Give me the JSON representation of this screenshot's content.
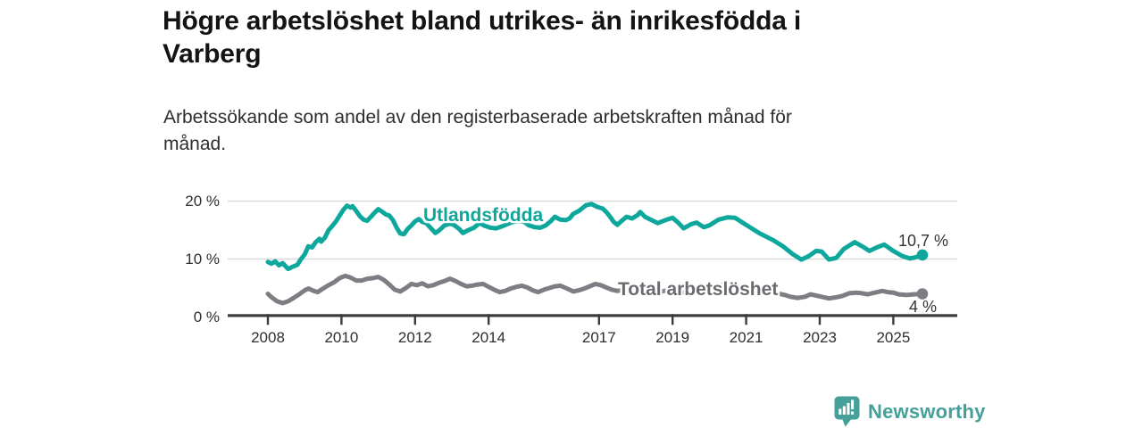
{
  "header": {
    "title_lines": [
      "Högre arbetslöshet bland utrikes- än inrikesfödda i",
      "Varberg"
    ],
    "subtitle_lines": [
      "Arbetssökande som andel av den registerbaserade arbetskraften månad för",
      "månad."
    ]
  },
  "footer": {
    "brand_name": "Newsworthy",
    "brand_color": "#45a09a",
    "logo_icon": "newsworthy-speech-bubble-bar-chart-icon"
  },
  "chart_data": {
    "type": "line",
    "title": "Högre arbetslöshet bland utrikes- än inrikesfödda i Varberg",
    "subtitle": "Arbetssökande som andel av den registerbaserade arbetskraften månad för månad.",
    "unit": "%",
    "grid": "horizontal",
    "legend_position": "inline-labels-on-lines",
    "x_axis": {
      "ticks": [
        {
          "value": 2008,
          "label": "2008"
        },
        {
          "value": 2010,
          "label": "2010"
        },
        {
          "value": 2012,
          "label": "2012"
        },
        {
          "value": 2014,
          "label": "2014"
        },
        {
          "value": 2017,
          "label": "2017"
        },
        {
          "value": 2019,
          "label": "2019"
        },
        {
          "value": 2021,
          "label": "2021"
        },
        {
          "value": 2023,
          "label": "2023"
        },
        {
          "value": 2025,
          "label": "2025"
        }
      ],
      "range": [
        2006.9,
        2026.7
      ]
    },
    "y_axis": {
      "ticks": [
        {
          "value": 0,
          "label": "0 %"
        },
        {
          "value": 10,
          "label": "10 %"
        },
        {
          "value": 20,
          "label": "20 %"
        }
      ],
      "range": [
        0,
        21.5
      ]
    },
    "series": [
      {
        "name": "Utlandsfödda",
        "color": "#0da79c",
        "end_label": "10,7 %",
        "last_value": 10.7,
        "points": [
          [
            2008.0,
            9.5
          ],
          [
            2008.1,
            9.2
          ],
          [
            2008.2,
            9.6
          ],
          [
            2008.3,
            8.9
          ],
          [
            2008.4,
            9.3
          ],
          [
            2008.55,
            8.3
          ],
          [
            2008.65,
            8.6
          ],
          [
            2008.8,
            9.0
          ],
          [
            2008.9,
            10.0
          ],
          [
            2009.0,
            10.8
          ],
          [
            2009.1,
            12.2
          ],
          [
            2009.2,
            12.0
          ],
          [
            2009.3,
            12.9
          ],
          [
            2009.4,
            13.5
          ],
          [
            2009.45,
            13.0
          ],
          [
            2009.55,
            13.7
          ],
          [
            2009.65,
            15.0
          ],
          [
            2009.75,
            15.7
          ],
          [
            2009.85,
            16.5
          ],
          [
            2009.95,
            17.5
          ],
          [
            2010.05,
            18.5
          ],
          [
            2010.15,
            19.2
          ],
          [
            2010.25,
            18.9
          ],
          [
            2010.3,
            19.1
          ],
          [
            2010.4,
            18.3
          ],
          [
            2010.5,
            17.4
          ],
          [
            2010.6,
            16.8
          ],
          [
            2010.7,
            16.6
          ],
          [
            2010.8,
            17.3
          ],
          [
            2010.9,
            18.0
          ],
          [
            2011.0,
            18.6
          ],
          [
            2011.1,
            18.2
          ],
          [
            2011.2,
            17.7
          ],
          [
            2011.3,
            17.5
          ],
          [
            2011.4,
            16.7
          ],
          [
            2011.5,
            15.4
          ],
          [
            2011.6,
            14.4
          ],
          [
            2011.7,
            14.3
          ],
          [
            2011.8,
            15.2
          ],
          [
            2011.9,
            15.8
          ],
          [
            2012.0,
            16.5
          ],
          [
            2012.1,
            16.9
          ],
          [
            2012.2,
            16.4
          ],
          [
            2012.3,
            16.2
          ],
          [
            2012.45,
            15.2
          ],
          [
            2012.55,
            14.5
          ],
          [
            2012.65,
            14.9
          ],
          [
            2012.8,
            15.8
          ],
          [
            2012.95,
            16.1
          ],
          [
            2013.05,
            15.9
          ],
          [
            2013.2,
            15.2
          ],
          [
            2013.3,
            14.5
          ],
          [
            2013.45,
            15.0
          ],
          [
            2013.6,
            15.4
          ],
          [
            2013.75,
            16.2
          ],
          [
            2013.9,
            15.7
          ],
          [
            2014.05,
            15.4
          ],
          [
            2014.2,
            15.3
          ],
          [
            2014.35,
            15.6
          ],
          [
            2014.5,
            16.0
          ],
          [
            2014.65,
            16.4
          ],
          [
            2014.8,
            16.6
          ],
          [
            2014.95,
            16.5
          ],
          [
            2015.1,
            15.8
          ],
          [
            2015.25,
            15.5
          ],
          [
            2015.4,
            15.4
          ],
          [
            2015.55,
            15.8
          ],
          [
            2015.7,
            16.6
          ],
          [
            2015.8,
            17.3
          ],
          [
            2015.95,
            16.8
          ],
          [
            2016.1,
            16.7
          ],
          [
            2016.2,
            17.0
          ],
          [
            2016.3,
            17.8
          ],
          [
            2016.45,
            18.3
          ],
          [
            2016.55,
            18.8
          ],
          [
            2016.65,
            19.3
          ],
          [
            2016.8,
            19.5
          ],
          [
            2016.95,
            19.0
          ],
          [
            2017.1,
            18.7
          ],
          [
            2017.2,
            18.1
          ],
          [
            2017.3,
            17.3
          ],
          [
            2017.4,
            16.4
          ],
          [
            2017.5,
            15.9
          ],
          [
            2017.6,
            16.5
          ],
          [
            2017.75,
            17.3
          ],
          [
            2017.9,
            17.0
          ],
          [
            2018.05,
            17.6
          ],
          [
            2018.12,
            18.1
          ],
          [
            2018.25,
            17.3
          ],
          [
            2018.4,
            16.8
          ],
          [
            2018.6,
            16.2
          ],
          [
            2018.8,
            16.7
          ],
          [
            2019.0,
            17.1
          ],
          [
            2019.15,
            16.3
          ],
          [
            2019.3,
            15.3
          ],
          [
            2019.5,
            16.0
          ],
          [
            2019.65,
            16.3
          ],
          [
            2019.85,
            15.5
          ],
          [
            2020.0,
            15.8
          ],
          [
            2020.25,
            16.8
          ],
          [
            2020.5,
            17.2
          ],
          [
            2020.7,
            17.1
          ],
          [
            2020.9,
            16.3
          ],
          [
            2021.1,
            15.5
          ],
          [
            2021.35,
            14.5
          ],
          [
            2021.5,
            14.0
          ],
          [
            2021.75,
            13.2
          ],
          [
            2022.0,
            12.2
          ],
          [
            2022.25,
            10.9
          ],
          [
            2022.5,
            9.9
          ],
          [
            2022.7,
            10.5
          ],
          [
            2022.9,
            11.4
          ],
          [
            2023.05,
            11.3
          ],
          [
            2023.25,
            9.9
          ],
          [
            2023.45,
            10.2
          ],
          [
            2023.65,
            11.7
          ],
          [
            2023.95,
            12.9
          ],
          [
            2024.15,
            12.2
          ],
          [
            2024.35,
            11.4
          ],
          [
            2024.55,
            12.0
          ],
          [
            2024.75,
            12.5
          ],
          [
            2025.0,
            11.4
          ],
          [
            2025.25,
            10.5
          ],
          [
            2025.45,
            10.1
          ],
          [
            2025.6,
            10.3
          ],
          [
            2025.79,
            10.7
          ]
        ]
      },
      {
        "name": "Total arbetslöshet",
        "color": "#7d7d83",
        "end_label": "4 %",
        "last_value": 4,
        "points": [
          [
            2008.0,
            4.0
          ],
          [
            2008.1,
            3.4
          ],
          [
            2008.25,
            2.7
          ],
          [
            2008.4,
            2.4
          ],
          [
            2008.55,
            2.7
          ],
          [
            2008.7,
            3.3
          ],
          [
            2008.85,
            3.9
          ],
          [
            2009.0,
            4.6
          ],
          [
            2009.1,
            4.9
          ],
          [
            2009.25,
            4.5
          ],
          [
            2009.35,
            4.3
          ],
          [
            2009.5,
            4.9
          ],
          [
            2009.65,
            5.5
          ],
          [
            2009.8,
            6.0
          ],
          [
            2009.95,
            6.7
          ],
          [
            2010.1,
            7.1
          ],
          [
            2010.25,
            6.8
          ],
          [
            2010.4,
            6.3
          ],
          [
            2010.55,
            6.3
          ],
          [
            2010.7,
            6.6
          ],
          [
            2010.85,
            6.7
          ],
          [
            2011.0,
            6.9
          ],
          [
            2011.15,
            6.4
          ],
          [
            2011.3,
            5.6
          ],
          [
            2011.45,
            4.7
          ],
          [
            2011.6,
            4.4
          ],
          [
            2011.75,
            5.0
          ],
          [
            2011.9,
            5.7
          ],
          [
            2012.05,
            5.5
          ],
          [
            2012.2,
            5.8
          ],
          [
            2012.35,
            5.3
          ],
          [
            2012.5,
            5.5
          ],
          [
            2012.65,
            5.9
          ],
          [
            2012.8,
            6.2
          ],
          [
            2012.95,
            6.6
          ],
          [
            2013.1,
            6.2
          ],
          [
            2013.25,
            5.7
          ],
          [
            2013.4,
            5.3
          ],
          [
            2013.55,
            5.4
          ],
          [
            2013.7,
            5.6
          ],
          [
            2013.85,
            5.7
          ],
          [
            2014.0,
            5.2
          ],
          [
            2014.15,
            4.7
          ],
          [
            2014.3,
            4.3
          ],
          [
            2014.45,
            4.5
          ],
          [
            2014.6,
            4.9
          ],
          [
            2014.75,
            5.2
          ],
          [
            2014.9,
            5.4
          ],
          [
            2015.05,
            5.1
          ],
          [
            2015.2,
            4.6
          ],
          [
            2015.35,
            4.3
          ],
          [
            2015.5,
            4.7
          ],
          [
            2015.65,
            5.0
          ],
          [
            2015.8,
            5.3
          ],
          [
            2015.95,
            5.4
          ],
          [
            2016.1,
            5.0
          ],
          [
            2016.3,
            4.4
          ],
          [
            2016.45,
            4.6
          ],
          [
            2016.6,
            4.9
          ],
          [
            2016.75,
            5.3
          ],
          [
            2016.9,
            5.7
          ],
          [
            2017.05,
            5.5
          ],
          [
            2017.2,
            5.1
          ],
          [
            2017.35,
            4.7
          ],
          [
            2017.5,
            4.5
          ],
          [
            2017.65,
            4.7
          ],
          [
            2017.8,
            4.9
          ],
          [
            2017.95,
            5.1
          ],
          [
            2018.1,
            5.0
          ],
          [
            2018.25,
            4.6
          ],
          [
            2018.4,
            4.3
          ],
          [
            2018.55,
            4.2
          ],
          [
            2018.7,
            4.4
          ],
          [
            2018.85,
            4.6
          ],
          [
            2019.0,
            4.8
          ],
          [
            2019.15,
            4.6
          ],
          [
            2019.3,
            4.3
          ],
          [
            2019.45,
            4.2
          ],
          [
            2019.6,
            4.3
          ],
          [
            2019.75,
            4.5
          ],
          [
            2019.9,
            4.6
          ],
          [
            2020.05,
            4.8
          ],
          [
            2020.2,
            5.2
          ],
          [
            2020.4,
            5.6
          ],
          [
            2020.6,
            5.5
          ],
          [
            2020.8,
            5.3
          ],
          [
            2020.95,
            5.2
          ],
          [
            2021.1,
            5.0
          ],
          [
            2021.3,
            4.7
          ],
          [
            2021.5,
            4.4
          ],
          [
            2021.7,
            4.2
          ],
          [
            2021.9,
            4.0
          ],
          [
            2022.05,
            3.8
          ],
          [
            2022.2,
            3.5
          ],
          [
            2022.4,
            3.3
          ],
          [
            2022.6,
            3.5
          ],
          [
            2022.75,
            3.9
          ],
          [
            2022.9,
            3.7
          ],
          [
            2023.05,
            3.5
          ],
          [
            2023.25,
            3.2
          ],
          [
            2023.45,
            3.4
          ],
          [
            2023.6,
            3.6
          ],
          [
            2023.8,
            4.1
          ],
          [
            2024.0,
            4.2
          ],
          [
            2024.15,
            4.1
          ],
          [
            2024.3,
            3.9
          ],
          [
            2024.5,
            4.2
          ],
          [
            2024.7,
            4.5
          ],
          [
            2024.85,
            4.3
          ],
          [
            2025.0,
            4.2
          ],
          [
            2025.15,
            3.9
          ],
          [
            2025.35,
            3.8
          ],
          [
            2025.55,
            3.9
          ],
          [
            2025.79,
            4.0
          ]
        ]
      }
    ]
  }
}
